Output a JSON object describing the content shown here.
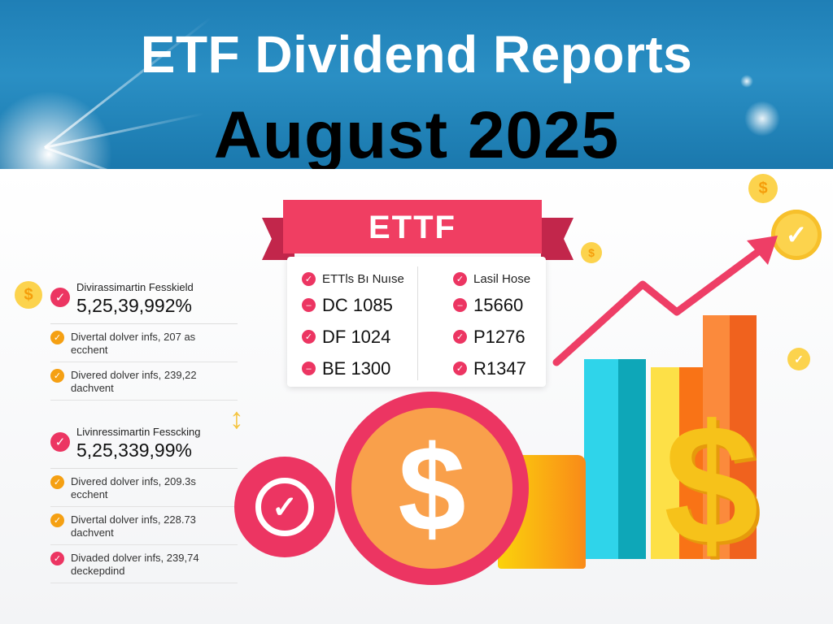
{
  "header": {
    "title": "ETF Dividend Reports",
    "subtitle": "August 2025"
  },
  "ribbon": {
    "label": "ETTF"
  },
  "left_panel": {
    "block1": {
      "heading": "Divirassimartin Fesskield",
      "value": "5,25,39,992%",
      "rows": [
        {
          "line1": "Divertal dolver infs, 207 as",
          "line2": "ecchent",
          "color": "#f5a013"
        },
        {
          "line1": "Divered dolver infs, 239,22",
          "line2": "dachvent",
          "color": "#f5a013"
        }
      ]
    },
    "block2": {
      "heading": "Livinressimartin Fesscking",
      "value": "5,25,339,99%",
      "rows": [
        {
          "line1": "Divered dolver infs, 209.3s",
          "line2": "ecchent",
          "color": "#f5a013"
        },
        {
          "line1": "Divertal dolver infs, 228.73",
          "line2": "dachvent",
          "color": "#f5a013"
        },
        {
          "line1": "Divaded dolver infs, 239,74",
          "line2": "deckepdind",
          "color": "#ec3562"
        }
      ]
    }
  },
  "table": {
    "left": {
      "header": "ETTls Bı Nuıse",
      "rows": [
        "DC 1085",
        "DF 1024",
        "BE 1300"
      ]
    },
    "right": {
      "header": "Lasil Hose",
      "rows": [
        "15660",
        "P1276",
        "R1347"
      ]
    }
  },
  "icons": {
    "dollar": "$",
    "check": "✓"
  },
  "colors": {
    "header_blue": "#1f7fb6",
    "accent_pink": "#ec3562",
    "accent_orange": "#f5a013",
    "gold": "#f6c21a"
  },
  "bars": [
    {
      "name": "cyan",
      "color_a": "#2fd4ea",
      "color_b": "#0ea7b8",
      "x": 718,
      "w": 76,
      "y": 442
    },
    {
      "name": "yellow",
      "color_a": "#fde047",
      "color_b": "#f97316",
      "x": 800,
      "w": 70,
      "y": 452
    },
    {
      "name": "orange",
      "color_a": "#fb8a3c",
      "color_b": "#f0621e",
      "x": 864,
      "w": 66,
      "y": 388
    }
  ]
}
